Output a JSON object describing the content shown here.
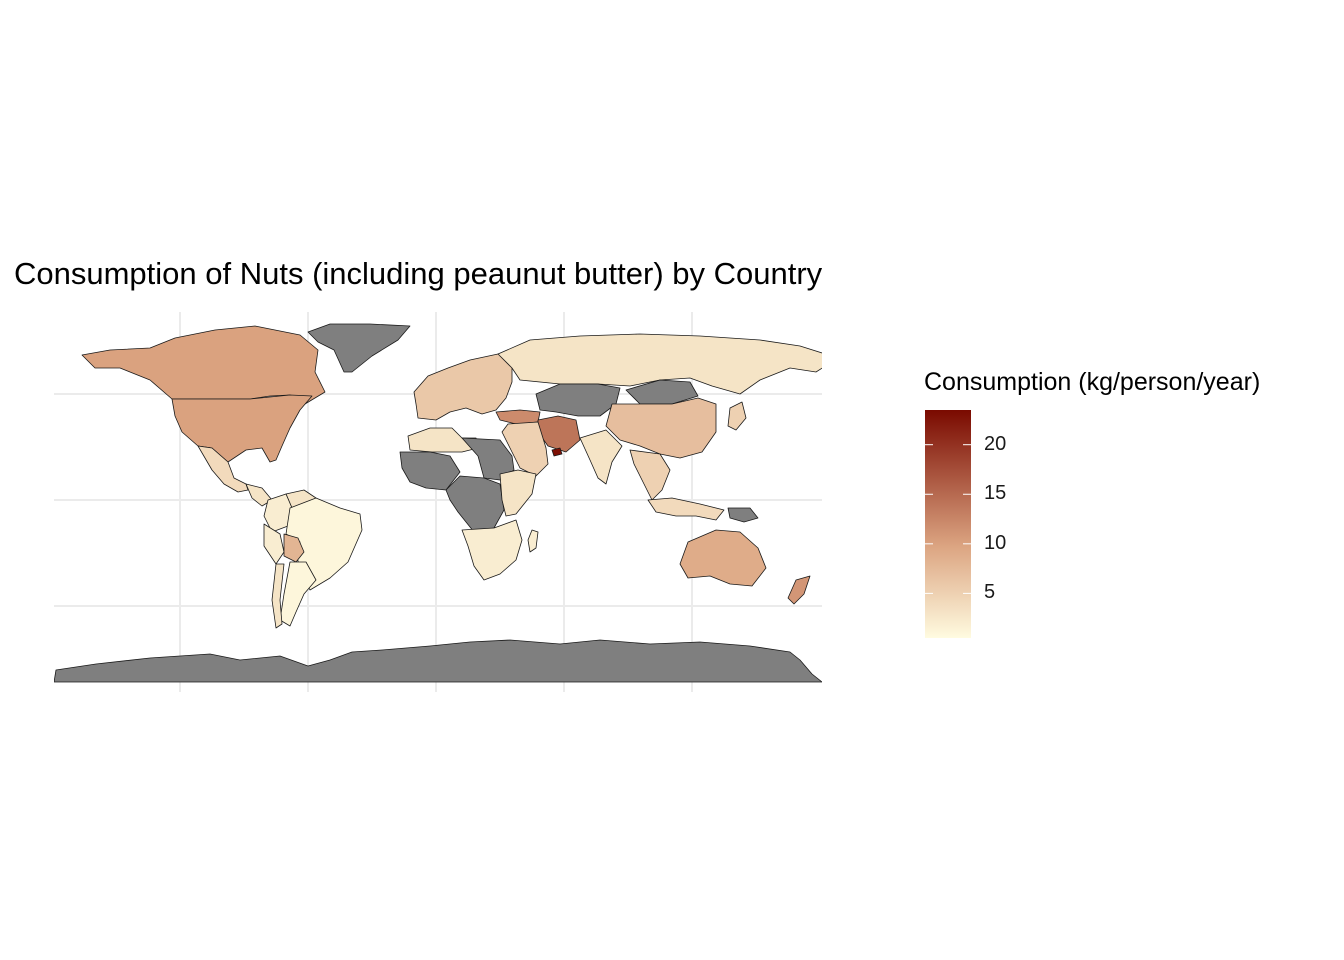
{
  "title": "Consumption of Nuts (including peaunut butter) by Country",
  "legend": {
    "title": "Consumption (kg/person/year)",
    "ticks": [
      "5",
      "10",
      "15",
      "20"
    ],
    "tick_values": [
      5,
      10,
      15,
      20
    ],
    "min": 0.5,
    "max": 23.5,
    "colors": {
      "low": "#fffbe0",
      "mid": "#dca582",
      "high": "#7a0a00"
    },
    "na_color": "#7f7f7f"
  },
  "map": {
    "projection": "equirectangular",
    "background": "#ffffff",
    "gridline_color": "#ebebeb",
    "border_color": "#1a1a1a",
    "gridlines": true
  },
  "chart_data": {
    "type": "choropleth",
    "title": "Consumption of Nuts (including peaunut butter) by Country",
    "legend_title": "Consumption (kg/person/year)",
    "scale_range": [
      0.5,
      23.5
    ],
    "regions": [
      {
        "name": "Canada",
        "value": 10
      },
      {
        "name": "United States",
        "value": 10
      },
      {
        "name": "Mexico",
        "value": 4
      },
      {
        "name": "Central America",
        "value": 3
      },
      {
        "name": "Venezuela",
        "value": 3
      },
      {
        "name": "Colombia",
        "value": 2
      },
      {
        "name": "Brazil",
        "value": 1
      },
      {
        "name": "Bolivia",
        "value": 8
      },
      {
        "name": "Peru",
        "value": 2
      },
      {
        "name": "Argentina",
        "value": 1
      },
      {
        "name": "Chile",
        "value": 3
      },
      {
        "name": "Greenland",
        "value": null
      },
      {
        "name": "Russia",
        "value": 3
      },
      {
        "name": "Western Europe",
        "value": 6
      },
      {
        "name": "Turkey",
        "value": 12
      },
      {
        "name": "Iran",
        "value": 14
      },
      {
        "name": "United Arab Emirates",
        "value": 23
      },
      {
        "name": "Middle East (other)",
        "value": 5
      },
      {
        "name": "Central Asia",
        "value": null
      },
      {
        "name": "Mongolia",
        "value": null
      },
      {
        "name": "China",
        "value": 7
      },
      {
        "name": "India",
        "value": 3
      },
      {
        "name": "Southeast Asia",
        "value": 5
      },
      {
        "name": "Japan",
        "value": 5
      },
      {
        "name": "North Africa",
        "value": 3
      },
      {
        "name": "Libya / Sudan",
        "value": null
      },
      {
        "name": "West Africa",
        "value": null
      },
      {
        "name": "Central Africa",
        "value": null
      },
      {
        "name": "East Africa",
        "value": 3
      },
      {
        "name": "Southern Africa",
        "value": 2
      },
      {
        "name": "Madagascar",
        "value": 2
      },
      {
        "name": "Indonesia",
        "value": 4
      },
      {
        "name": "Papua New Guinea",
        "value": null
      },
      {
        "name": "Australia",
        "value": 9
      },
      {
        "name": "New Zealand",
        "value": 11
      },
      {
        "name": "Antarctica",
        "value": null
      }
    ]
  }
}
